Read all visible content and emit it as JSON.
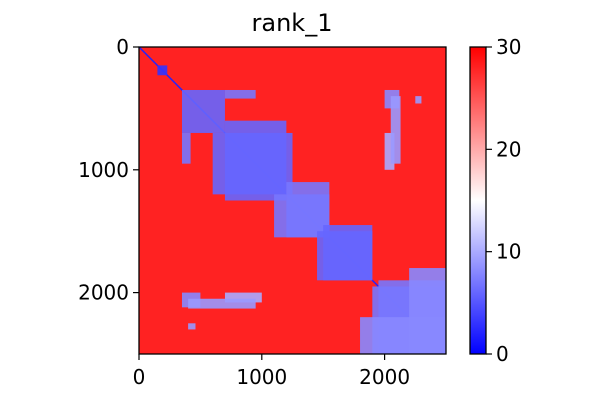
{
  "chart_data": {
    "type": "heatmap",
    "title": "rank_1",
    "xlabel": "",
    "ylabel": "",
    "matrix_size": 2500,
    "xlim": [
      0,
      2500
    ],
    "ylim": [
      2500,
      0
    ],
    "x_ticks": [
      0,
      1000,
      2000
    ],
    "y_ticks": [
      0,
      1000,
      2000
    ],
    "x_tick_labels": [
      "0",
      "1000",
      "2000"
    ],
    "y_tick_labels": [
      "0",
      "1000",
      "2000"
    ],
    "colormap": "bwr",
    "color_range": [
      0,
      30
    ],
    "colorbar_ticks": [
      0,
      10,
      20,
      30
    ],
    "colorbar_tick_labels": [
      "0",
      "10",
      "20",
      "30"
    ],
    "colors": {
      "low": "#0000ff",
      "mid": "#ffffff",
      "high": "#ff0000"
    },
    "low_value_blocks": [
      {
        "rows": [
          0,
          2500
        ],
        "cols": [
          0,
          2500
        ],
        "value": 2,
        "shape": "diagonal"
      },
      {
        "rows": [
          150,
          230
        ],
        "cols": [
          150,
          230
        ],
        "value": 3
      },
      {
        "rows": [
          350,
          700
        ],
        "cols": [
          350,
          700
        ],
        "value": 6
      },
      {
        "rows": [
          350,
          420
        ],
        "cols": [
          700,
          950
        ],
        "value": 7
      },
      {
        "rows": [
          700,
          1200
        ],
        "cols": [
          600,
          1250
        ],
        "value": 6
      },
      {
        "rows": [
          1200,
          1550
        ],
        "cols": [
          1100,
          1550
        ],
        "value": 7
      },
      {
        "rows": [
          1500,
          1900
        ],
        "cols": [
          1450,
          1900
        ],
        "value": 6
      },
      {
        "rows": [
          1900,
          2500
        ],
        "cols": [
          1950,
          2500
        ],
        "value": 7
      },
      {
        "rows": [
          350,
          500
        ],
        "cols": [
          2000,
          2120
        ],
        "value": 8
      },
      {
        "rows": [
          700,
          1000
        ],
        "cols": [
          2000,
          2080
        ],
        "value": 10
      },
      {
        "rows": [
          2050,
          2130
        ],
        "cols": [
          400,
          950
        ],
        "value": 9
      },
      {
        "rows": [
          2250,
          2300
        ],
        "cols": [
          400,
          460
        ],
        "value": 9
      },
      {
        "rows": [
          1800,
          2500
        ],
        "cols": [
          2200,
          2500
        ],
        "value": 8
      }
    ]
  }
}
